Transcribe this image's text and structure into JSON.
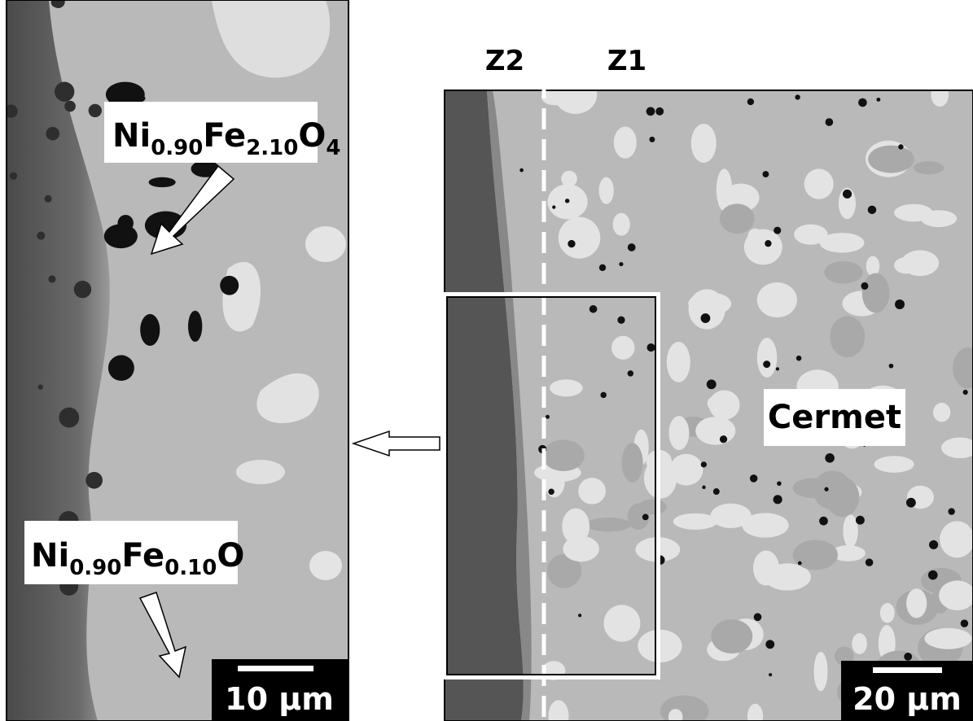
{
  "left_panel": {
    "label_top": {
      "parts": [
        {
          "text": "Ni"
        },
        {
          "sub": "0.90"
        },
        {
          "text": "Fe"
        },
        {
          "sub": "2.10"
        },
        {
          "text": "O"
        },
        {
          "sub": "4"
        }
      ]
    },
    "label_bottom": {
      "parts": [
        {
          "text": "Ni"
        },
        {
          "sub": "0.90"
        },
        {
          "text": "Fe"
        },
        {
          "sub": "0.10"
        },
        {
          "text": "O"
        }
      ]
    },
    "scale_bar": "10 µm"
  },
  "right_panel": {
    "zones": [
      "Z2",
      "Z1"
    ],
    "region_label": "Cermet",
    "scale_bar": "20 µm"
  }
}
